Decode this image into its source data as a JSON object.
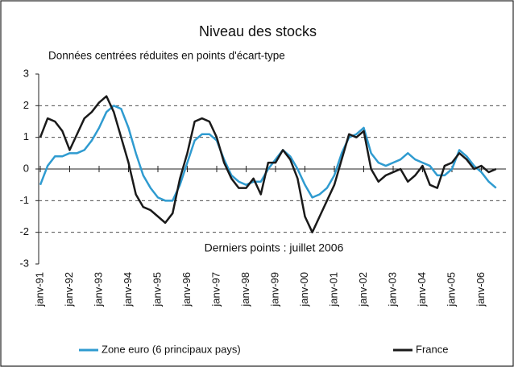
{
  "chart_data": {
    "type": "line",
    "title": "Niveau des stocks",
    "subtitle": "Données centrées réduites en points d'écart-type",
    "annotation": "Derniers points : juillet 2006",
    "categories": [
      "janv-91",
      null,
      null,
      null,
      "janv-92",
      null,
      null,
      null,
      "janv-93",
      null,
      null,
      null,
      "janv-94",
      null,
      null,
      null,
      "janv-95",
      null,
      null,
      null,
      "janv-96",
      null,
      null,
      null,
      "janv-97",
      null,
      null,
      null,
      "janv-98",
      null,
      null,
      null,
      "janv-99",
      null,
      null,
      null,
      "janv-00",
      null,
      null,
      null,
      "janv-01",
      null,
      null,
      null,
      "janv-02",
      null,
      null,
      null,
      "janv-03",
      null,
      null,
      null,
      "janv-04",
      null,
      null,
      null,
      "janv-05",
      null,
      null,
      null,
      "janv-06",
      null,
      null
    ],
    "series": [
      {
        "name": "Zone euro (6 principaux pays)",
        "color": "#2f9bd0",
        "values": [
          -0.5,
          0.1,
          0.4,
          0.4,
          0.5,
          0.5,
          0.6,
          0.9,
          1.3,
          1.8,
          2.0,
          1.9,
          1.3,
          0.5,
          -0.2,
          -0.6,
          -0.9,
          -1.0,
          -1.0,
          -0.5,
          0.2,
          0.9,
          1.1,
          1.1,
          0.9,
          0.3,
          -0.2,
          -0.4,
          -0.5,
          -0.4,
          -0.4,
          0.0,
          0.3,
          0.6,
          0.4,
          0.0,
          -0.5,
          -0.9,
          -0.8,
          -0.6,
          -0.2,
          0.5,
          1.0,
          1.1,
          1.3,
          0.5,
          0.2,
          0.1,
          0.2,
          0.3,
          0.5,
          0.3,
          0.2,
          0.1,
          -0.2,
          -0.2,
          0.0,
          0.6,
          0.4,
          0.1,
          -0.1,
          -0.4,
          -0.6
        ]
      },
      {
        "name": "France",
        "color": "#1a1a1a",
        "values": [
          1.0,
          1.6,
          1.5,
          1.2,
          0.6,
          1.1,
          1.6,
          1.8,
          2.1,
          2.3,
          1.8,
          1.0,
          0.2,
          -0.8,
          -1.2,
          -1.3,
          -1.5,
          -1.7,
          -1.4,
          -0.3,
          0.5,
          1.5,
          1.6,
          1.5,
          1.0,
          0.2,
          -0.3,
          -0.6,
          -0.6,
          -0.3,
          -0.8,
          0.2,
          0.2,
          0.6,
          0.3,
          -0.3,
          -1.5,
          -2.0,
          -1.5,
          -1.0,
          -0.5,
          0.3,
          1.1,
          1.0,
          1.2,
          0.0,
          -0.4,
          -0.2,
          -0.1,
          0.0,
          -0.4,
          -0.2,
          0.1,
          -0.5,
          -0.6,
          0.1,
          0.2,
          0.5,
          0.3,
          0.0,
          0.1,
          -0.1,
          0.0
        ]
      }
    ],
    "ylim": [
      -3,
      3
    ],
    "yticks": [
      -3,
      -2,
      -1,
      0,
      1,
      2,
      3
    ],
    "grid": true,
    "legend": "bottom"
  }
}
